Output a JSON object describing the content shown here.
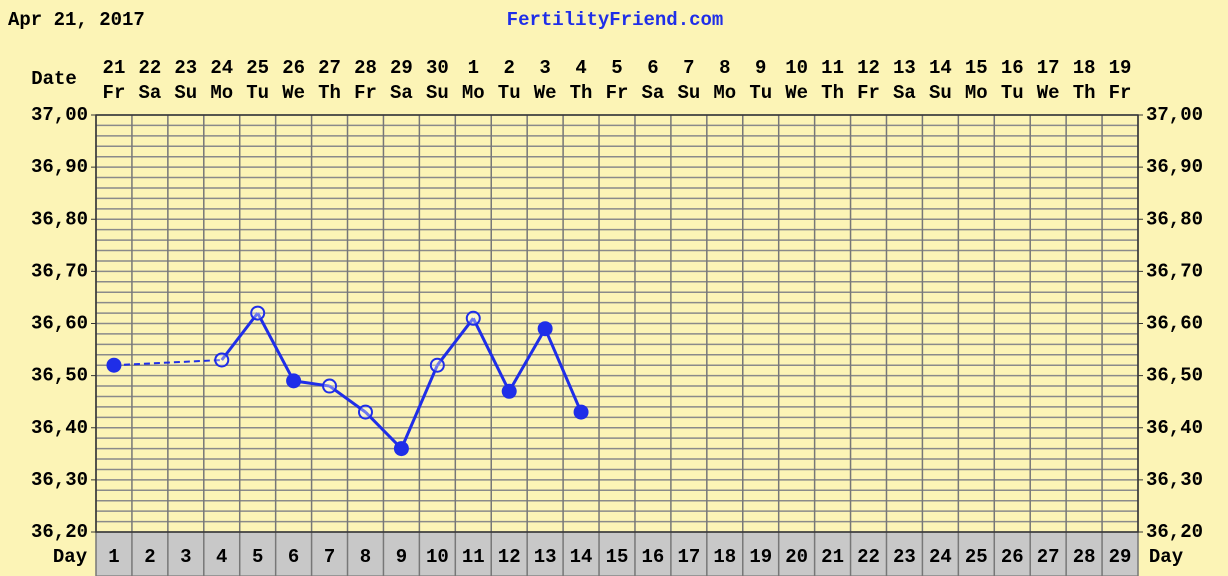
{
  "chart_data": {
    "type": "line",
    "date_printed": "Apr 21, 2017",
    "title": "FertilityFriend.com",
    "date_row_label": "Date",
    "day_row_label": "Day",
    "dates": [
      "21",
      "22",
      "23",
      "24",
      "25",
      "26",
      "27",
      "28",
      "29",
      "30",
      "1",
      "2",
      "3",
      "4",
      "5",
      "6",
      "7",
      "8",
      "9",
      "10",
      "11",
      "12",
      "13",
      "14",
      "15",
      "16",
      "17",
      "18",
      "19"
    ],
    "weekdays": [
      "Fr",
      "Sa",
      "Su",
      "Mo",
      "Tu",
      "We",
      "Th",
      "Fr",
      "Sa",
      "Su",
      "Mo",
      "Tu",
      "We",
      "Th",
      "Fr",
      "Sa",
      "Su",
      "Mo",
      "Tu",
      "We",
      "Th",
      "Fr",
      "Sa",
      "Su",
      "Mo",
      "Tu",
      "We",
      "Th",
      "Fr"
    ],
    "categories": [
      "1",
      "2",
      "3",
      "4",
      "5",
      "6",
      "7",
      "8",
      "9",
      "10",
      "11",
      "12",
      "13",
      "14",
      "15",
      "16",
      "17",
      "18",
      "19",
      "20",
      "21",
      "22",
      "23",
      "24",
      "25",
      "26",
      "27",
      "28",
      "29"
    ],
    "series": [
      {
        "color": "#1f2ee8",
        "values": [
          36.52,
          null,
          null,
          36.53,
          36.62,
          36.49,
          36.48,
          36.43,
          36.36,
          36.52,
          36.61,
          36.47,
          36.59,
          36.43,
          null,
          null,
          null,
          null,
          null,
          null,
          null,
          null,
          null,
          null,
          null,
          null,
          null,
          null,
          null
        ],
        "filled": [
          true,
          null,
          null,
          false,
          false,
          true,
          false,
          false,
          true,
          false,
          false,
          true,
          true,
          true,
          null,
          null,
          null,
          null,
          null,
          null,
          null,
          null,
          null,
          null,
          null,
          null,
          null,
          null,
          null
        ]
      }
    ],
    "gap_line": "dashed",
    "ylim": [
      36.2,
      37.0
    ],
    "yticks": [
      {
        "value": 36.2,
        "label": "36,20"
      },
      {
        "value": 36.3,
        "label": "36,30"
      },
      {
        "value": 36.4,
        "label": "36,40"
      },
      {
        "value": 36.5,
        "label": "36,50"
      },
      {
        "value": 36.6,
        "label": "36,60"
      },
      {
        "value": 36.7,
        "label": "36,70"
      },
      {
        "value": 36.8,
        "label": "36,80"
      },
      {
        "value": 36.9,
        "label": "36,90"
      },
      {
        "value": 37.0,
        "label": "37,00"
      }
    ],
    "grid": true,
    "grid_subdivisions": 5
  }
}
